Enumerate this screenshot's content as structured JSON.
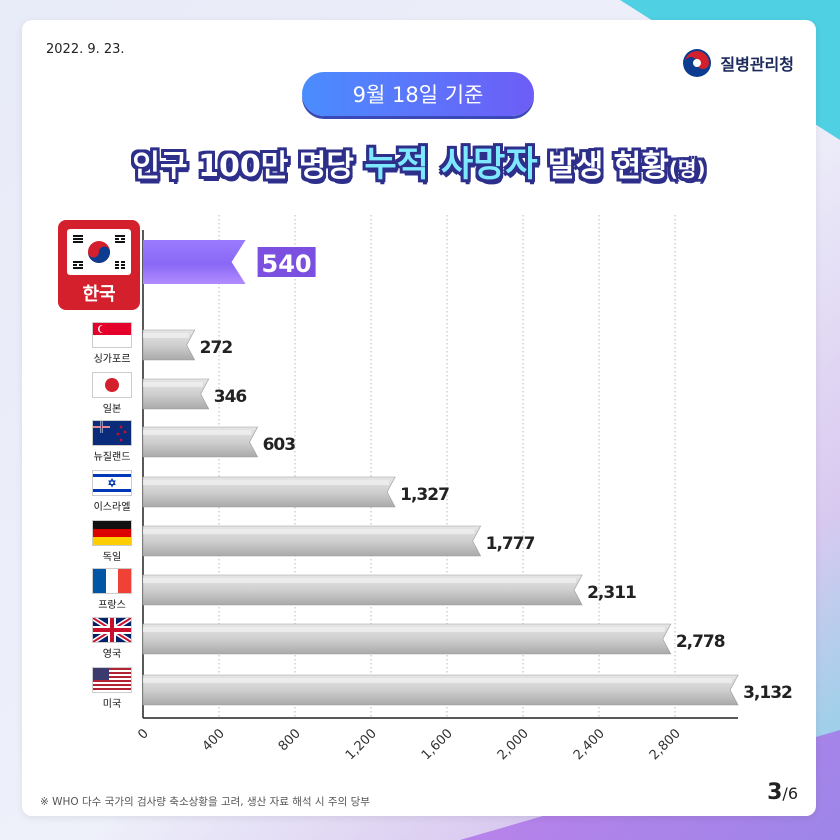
{
  "header": {
    "date": "2022. 9. 23.",
    "agency": "질병관리청",
    "badge": "9월 18일 기준",
    "title_part1": "인구 100만 명당",
    "title_highlight": "누적 사망자",
    "title_part2": "발생 현황",
    "title_unit": "(명)"
  },
  "footer": {
    "footnote": "※ WHO 다수 국가의 검사량 축소상황을 고려, 생산 자료 해석 시 주의 당부",
    "page_current": "3",
    "page_total": "/6"
  },
  "chart_data": {
    "type": "bar",
    "orientation": "horizontal",
    "categories": [
      "한국",
      "싱가포르",
      "일본",
      "뉴질랜드",
      "이스라엘",
      "독일",
      "프랑스",
      "영국",
      "미국"
    ],
    "values": [
      540,
      272,
      346,
      603,
      1327,
      1777,
      2311,
      2778,
      3132
    ],
    "value_labels": [
      "540",
      "272",
      "346",
      "603",
      "1,327",
      "1,777",
      "2,311",
      "2,778",
      "3,132"
    ],
    "xticks": [
      0,
      400,
      800,
      1200,
      1600,
      2000,
      2400,
      2800
    ],
    "xtick_labels": [
      "0",
      "400",
      "800",
      "1,200",
      "1,600",
      "2,000",
      "2,400",
      "2,800"
    ],
    "xlim": [
      0,
      3132
    ],
    "highlight_category": "한국",
    "colors": {
      "highlight": "#7b4fe0",
      "bar": "#c8c8c8",
      "korea_box": "#d4202c"
    },
    "grid": "vertical-dotted"
  },
  "flags": {
    "한국": "flag-korea",
    "싱가포르": "flag-singapore",
    "일본": "flag-japan",
    "뉴질랜드": "flag-newzealand",
    "이스라엘": "flag-israel",
    "독일": "flag-germany",
    "프랑스": "flag-france",
    "영국": "flag-uk",
    "미국": "flag-usa"
  }
}
